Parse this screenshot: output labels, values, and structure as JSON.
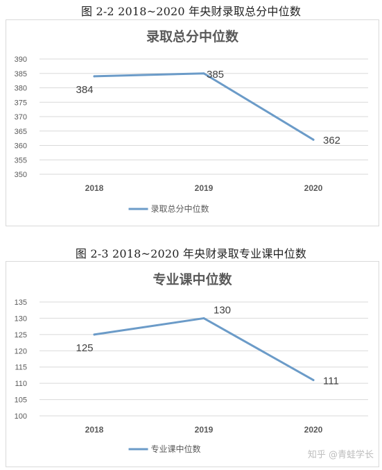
{
  "captions": {
    "fig1": "图 2-2 2018~2020 年央财录取总分中位数",
    "fig2": "图 2-3 2018~2020 年央财录取专业课中位数"
  },
  "watermark": "知乎 @青蛙学长",
  "colors": {
    "line": "#6b9bc8",
    "grid": "#d9d9d9",
    "tick": "#595959",
    "title": "#595959"
  },
  "chart_data": [
    {
      "type": "line",
      "title": "录取总分中位数",
      "categories": [
        "2018",
        "2019",
        "2020"
      ],
      "series": [
        {
          "name": "录取总分中位数",
          "values": [
            384,
            385,
            362
          ]
        }
      ],
      "ylim": [
        350,
        390
      ],
      "yticks": [
        350,
        355,
        360,
        365,
        370,
        375,
        380,
        385,
        390
      ],
      "data_labels": [
        "384",
        "385",
        "362"
      ],
      "grid": true,
      "legend": "bottom"
    },
    {
      "type": "line",
      "title": "专业课中位数",
      "categories": [
        "2018",
        "2019",
        "2020"
      ],
      "series": [
        {
          "name": "专业课中位数",
          "values": [
            125,
            130,
            111
          ]
        }
      ],
      "ylim": [
        100,
        135
      ],
      "yticks": [
        100,
        105,
        110,
        115,
        120,
        125,
        130,
        135
      ],
      "data_labels": [
        "125",
        "130",
        "111"
      ],
      "grid": true,
      "legend": "bottom"
    }
  ]
}
